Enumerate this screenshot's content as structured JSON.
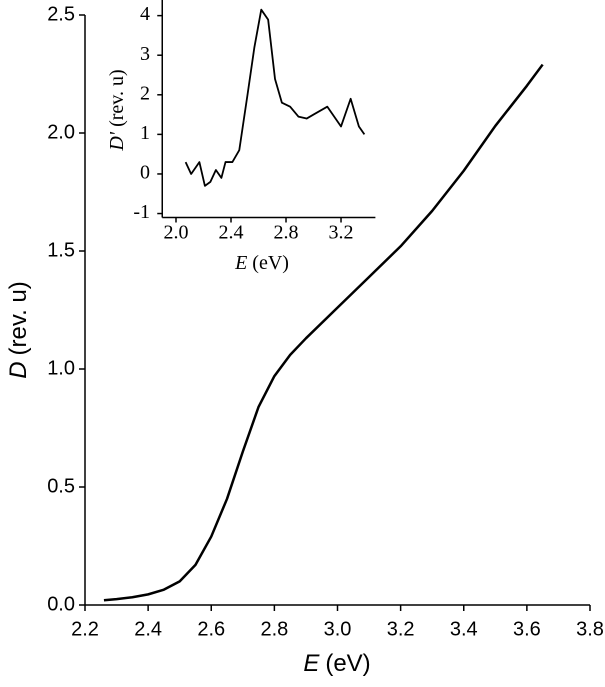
{
  "chart_data": [
    {
      "type": "line",
      "xlabel_symbol": "E",
      "xlabel_unit": "(eV)",
      "ylabel_symbol": "D",
      "ylabel_unit": "(rev. u)",
      "x": [
        2.26,
        2.3,
        2.35,
        2.4,
        2.45,
        2.5,
        2.55,
        2.6,
        2.65,
        2.7,
        2.75,
        2.8,
        2.85,
        2.9,
        3.0,
        3.1,
        3.2,
        3.3,
        3.4,
        3.5,
        3.6,
        3.65
      ],
      "series": [
        {
          "color": "#000000",
          "values": [
            0.02,
            0.025,
            0.033,
            0.045,
            0.065,
            0.1,
            0.17,
            0.29,
            0.45,
            0.65,
            0.84,
            0.97,
            1.06,
            1.13,
            1.26,
            1.39,
            1.52,
            1.67,
            1.84,
            2.03,
            2.2,
            2.29
          ]
        }
      ],
      "xlim": [
        2.2,
        3.8
      ],
      "ylim": [
        0,
        2.5
      ],
      "xticks": [
        2.2,
        2.4,
        2.6,
        2.8,
        {
          "value": 3.0,
          "label": "3.0"
        },
        3.2,
        3.4,
        3.6,
        3.8
      ],
      "yticks": [
        {
          "value": 0,
          "label": "0.0"
        },
        0.5,
        {
          "value": 1,
          "label": "1.0"
        },
        1.5,
        {
          "value": 2,
          "label": "2.0"
        },
        2.5
      ]
    },
    {
      "type": "line",
      "xlabel_symbol": "E",
      "xlabel_unit": "(eV)",
      "ylabel_symbol": "D'",
      "ylabel_unit": "(rev. u)",
      "x": [
        2.07,
        2.11,
        2.17,
        2.21,
        2.25,
        2.29,
        2.33,
        2.36,
        2.41,
        2.46,
        2.52,
        2.57,
        2.62,
        2.67,
        2.72,
        2.77,
        2.83,
        2.89,
        2.95,
        3.0,
        3.1,
        3.2,
        3.27,
        3.33,
        3.37
      ],
      "series": [
        {
          "color": "#000000",
          "values": [
            0.3,
            0.0,
            0.3,
            -0.3,
            -0.2,
            0.1,
            -0.1,
            0.3,
            0.3,
            0.6,
            2.0,
            3.2,
            4.15,
            3.9,
            2.4,
            1.8,
            1.7,
            1.45,
            1.4,
            1.5,
            1.7,
            1.2,
            1.9,
            1.2,
            1.0
          ]
        }
      ],
      "xlim": [
        1.9,
        3.45
      ],
      "ylim": [
        -1.1,
        4.4
      ],
      "xticks": [
        {
          "value": 2.0,
          "label": "2.0"
        },
        2.4,
        2.8,
        3.2
      ],
      "yticks": [
        -1,
        0,
        1,
        2,
        3,
        4
      ]
    }
  ]
}
